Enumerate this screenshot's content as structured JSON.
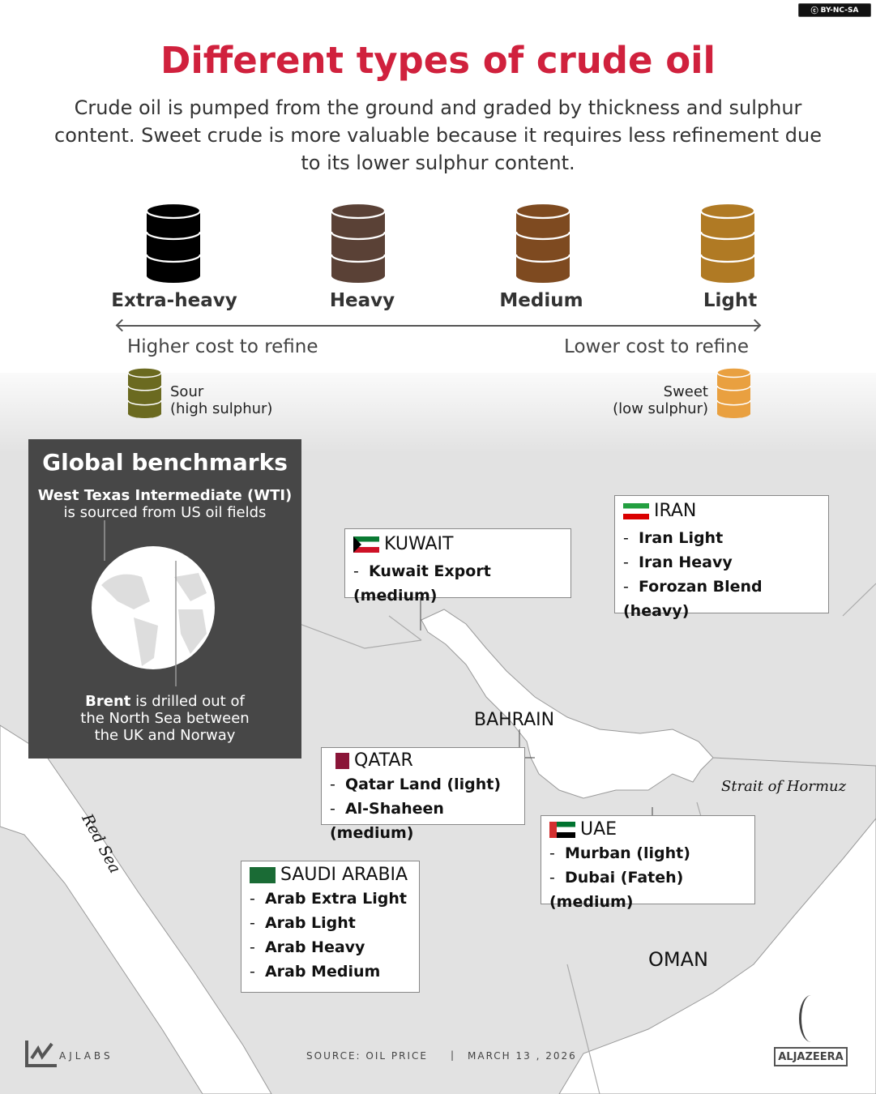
{
  "license": "BY-NC-SA",
  "title": "Different types of crude oil",
  "subtitle": "Crude oil is pumped from the ground and graded by thickness and sulphur content. Sweet crude is more valuable because it requires less refinement due to its lower sulphur content.",
  "grades": [
    {
      "label": "Extra-heavy",
      "color": "#000000"
    },
    {
      "label": "Heavy",
      "color": "#5a4136"
    },
    {
      "label": "Medium",
      "color": "#7e4a20"
    },
    {
      "label": "Light",
      "color": "#b07a24"
    }
  ],
  "scale": {
    "left": "Higher cost to refine",
    "right": "Lower cost to refine"
  },
  "sulphur": {
    "sour": {
      "label": "Sour",
      "sub": "(high sulphur)",
      "color": "#6b6a20"
    },
    "sweet": {
      "label": "Sweet",
      "sub": "(low sulphur)",
      "color": "#e9a040"
    }
  },
  "benchmarks": {
    "title": "Global benchmarks",
    "wti_name": "West Texas Intermediate (WTI)",
    "wti_desc": "is sourced from US oil fields",
    "brent_name": "Brent",
    "brent_desc_1": " is drilled out of",
    "brent_desc_2": "the North Sea between",
    "brent_desc_3": "the UK and Norway"
  },
  "countries": {
    "kuwait": {
      "name": "KUWAIT",
      "items": [
        "Kuwait Export (medium)"
      ]
    },
    "iran": {
      "name": "IRAN",
      "items": [
        "Iran Light",
        "Iran Heavy",
        "Forozan Blend (heavy)"
      ]
    },
    "qatar": {
      "name": "QATAR",
      "items": [
        "Qatar Land (light)",
        "Al-Shaheen (medium)"
      ]
    },
    "uae": {
      "name": "UAE",
      "items": [
        "Murban (light)",
        "Dubai (Fateh) (medium)"
      ]
    },
    "saudi": {
      "name": "SAUDI ARABIA",
      "items": [
        "Arab Extra Light",
        "Arab Light",
        "Arab Heavy",
        "Arab Medium"
      ]
    }
  },
  "places": {
    "bahrain": "BAHRAIN",
    "oman": "OMAN",
    "red_sea": "Red Sea",
    "hormuz": "Strait of Hormuz"
  },
  "footer": {
    "brand": "AJLABS",
    "source": "SOURCE:  OIL PRICE",
    "separator": "|",
    "date": "MARCH 13 , 2026",
    "logo": "ALJAZEERA"
  }
}
